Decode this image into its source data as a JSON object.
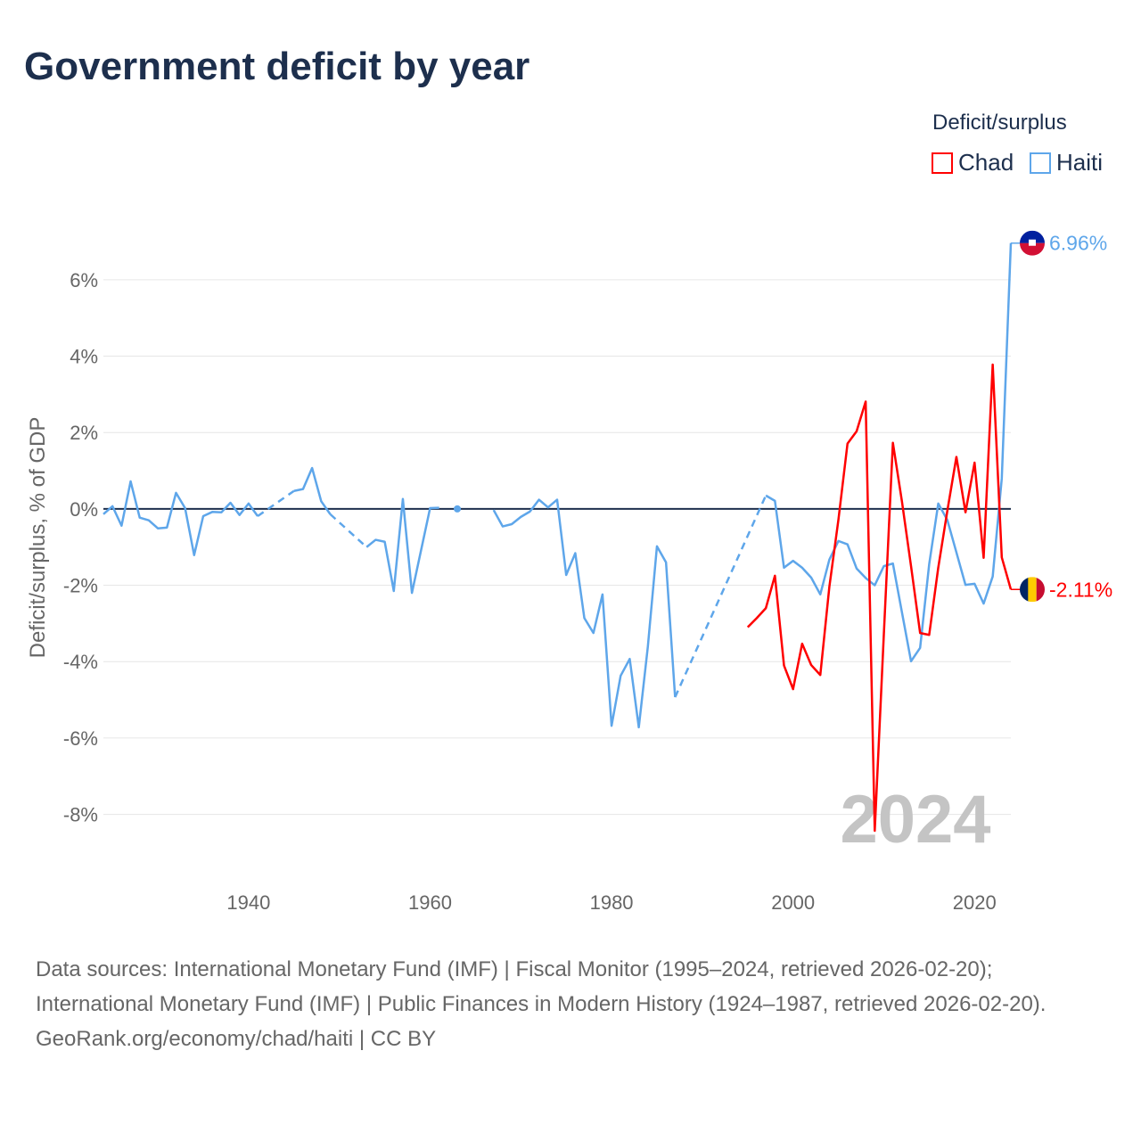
{
  "title": "Government deficit by year",
  "legend": {
    "title": "Deficit/surplus",
    "items": [
      {
        "label": "Chad",
        "color": "#ff0000"
      },
      {
        "label": "Haiti",
        "color": "#5ea6ea"
      }
    ]
  },
  "footer": {
    "sources": "Data sources: International Monetary Fund (IMF) | Fiscal Monitor (1995–2024, retrieved 2026-02-20); International Monetary Fund (IMF) | Public Finances in Modern History (1924–1987, retrieved 2026-02-20).",
    "credit": "GeoRank.org/economy/chad/haiti | CC BY"
  },
  "chart_data": {
    "type": "line",
    "title": "Government deficit by year",
    "xlabel": "",
    "ylabel": "Deficit/surplus, % of GDP",
    "xlim": [
      1924,
      2024
    ],
    "ylim": [
      -9.2,
      7.0
    ],
    "xticks": [
      1940,
      1960,
      1980,
      2000,
      2020
    ],
    "yticks": [
      -8,
      -6,
      -4,
      -2,
      0,
      2,
      4,
      6
    ],
    "ytick_labels": [
      "-8%",
      "-6%",
      "-4%",
      "-2%",
      "0%",
      "2%",
      "4%",
      "6%"
    ],
    "grid": true,
    "legend_position": "top-right",
    "year_watermark": "2024",
    "series": [
      {
        "name": "Haiti",
        "color": "#5ea6ea",
        "end_label": "6.96%",
        "points": [
          [
            1924,
            -0.14
          ],
          [
            1925,
            0.07
          ],
          [
            1926,
            -0.44
          ],
          [
            1927,
            0.72
          ],
          [
            1928,
            -0.23
          ],
          [
            1929,
            -0.3
          ],
          [
            1930,
            -0.51
          ],
          [
            1931,
            -0.49
          ],
          [
            1932,
            0.42
          ],
          [
            1933,
            0.02
          ],
          [
            1934,
            -1.21
          ],
          [
            1935,
            -0.19
          ],
          [
            1936,
            -0.08
          ],
          [
            1937,
            -0.09
          ],
          [
            1938,
            0.16
          ],
          [
            1939,
            -0.16
          ],
          [
            1940,
            0.14
          ],
          [
            1941,
            -0.19
          ],
          [
            1942,
            null
          ],
          [
            1943,
            null
          ],
          [
            1944,
            null
          ],
          [
            1945,
            0.47
          ],
          [
            1946,
            0.52
          ],
          [
            1947,
            1.07
          ],
          [
            1948,
            0.2
          ],
          [
            1949,
            -0.14
          ],
          [
            1950,
            null
          ],
          [
            1951,
            null
          ],
          [
            1952,
            null
          ],
          [
            1953,
            -1.0
          ],
          [
            1954,
            -0.81
          ],
          [
            1955,
            -0.86
          ],
          [
            1956,
            -2.15
          ],
          [
            1957,
            0.26
          ],
          [
            1958,
            -2.2
          ],
          [
            1959,
            -1.09
          ],
          [
            1960,
            0.02
          ],
          [
            1961,
            0.03
          ],
          [
            1962,
            null
          ],
          [
            1963,
            0.0
          ],
          [
            1964,
            null
          ],
          [
            1965,
            null
          ],
          [
            1966,
            null
          ],
          [
            1967,
            -0.03
          ],
          [
            1968,
            -0.46
          ],
          [
            1969,
            -0.4
          ],
          [
            1970,
            -0.21
          ],
          [
            1971,
            -0.07
          ],
          [
            1972,
            0.24
          ],
          [
            1973,
            0.04
          ],
          [
            1974,
            0.24
          ],
          [
            1975,
            -1.73
          ],
          [
            1976,
            -1.16
          ],
          [
            1977,
            -2.86
          ],
          [
            1978,
            -3.25
          ],
          [
            1979,
            -2.24
          ],
          [
            1980,
            -5.68
          ],
          [
            1981,
            -4.37
          ],
          [
            1982,
            -3.93
          ],
          [
            1983,
            -5.72
          ],
          [
            1984,
            -3.6
          ],
          [
            1985,
            -0.98
          ],
          [
            1986,
            -1.4
          ],
          [
            1987,
            -4.93
          ],
          [
            1988,
            null
          ],
          [
            1989,
            null
          ],
          [
            1990,
            null
          ],
          [
            1991,
            null
          ],
          [
            1992,
            null
          ],
          [
            1993,
            null
          ],
          [
            1994,
            null
          ],
          [
            1995,
            null
          ],
          [
            1996,
            null
          ],
          [
            1997,
            0.35
          ],
          [
            1998,
            0.21
          ],
          [
            1999,
            -1.54
          ],
          [
            2000,
            -1.36
          ],
          [
            2001,
            -1.54
          ],
          [
            2002,
            -1.8
          ],
          [
            2003,
            -2.24
          ],
          [
            2004,
            -1.33
          ],
          [
            2005,
            -0.84
          ],
          [
            2006,
            -0.93
          ],
          [
            2007,
            -1.56
          ],
          [
            2008,
            -1.81
          ],
          [
            2009,
            -2.0
          ],
          [
            2010,
            -1.5
          ],
          [
            2011,
            -1.43
          ],
          [
            2012,
            -2.71
          ],
          [
            2013,
            -3.99
          ],
          [
            2014,
            -3.64
          ],
          [
            2015,
            -1.45
          ],
          [
            2016,
            0.14
          ],
          [
            2017,
            -0.29
          ],
          [
            2018,
            -1.14
          ],
          [
            2019,
            -1.99
          ],
          [
            2020,
            -1.96
          ],
          [
            2021,
            -2.48
          ],
          [
            2022,
            -1.77
          ],
          [
            2023,
            0.8
          ],
          [
            2024,
            6.96
          ]
        ]
      },
      {
        "name": "Chad",
        "color": "#ff0000",
        "end_label": "-2.11%",
        "points": [
          [
            1995,
            -3.1
          ],
          [
            1996,
            -2.86
          ],
          [
            1997,
            -2.6
          ],
          [
            1998,
            -1.75
          ],
          [
            1999,
            -4.1
          ],
          [
            2000,
            -4.72
          ],
          [
            2001,
            -3.53
          ],
          [
            2002,
            -4.09
          ],
          [
            2003,
            -4.35
          ],
          [
            2004,
            -2.04
          ],
          [
            2005,
            -0.28
          ],
          [
            2006,
            1.71
          ],
          [
            2007,
            2.03
          ],
          [
            2008,
            2.81
          ],
          [
            2009,
            -8.43
          ],
          [
            2010,
            -3.3
          ],
          [
            2011,
            1.73
          ],
          [
            2012,
            0.19
          ],
          [
            2013,
            -1.5
          ],
          [
            2014,
            -3.25
          ],
          [
            2015,
            -3.3
          ],
          [
            2016,
            -1.54
          ],
          [
            2017,
            -0.05
          ],
          [
            2018,
            1.36
          ],
          [
            2019,
            -0.09
          ],
          [
            2020,
            1.21
          ],
          [
            2021,
            -1.28
          ],
          [
            2022,
            3.78
          ],
          [
            2023,
            -1.27
          ],
          [
            2024,
            -2.11
          ]
        ]
      }
    ]
  }
}
